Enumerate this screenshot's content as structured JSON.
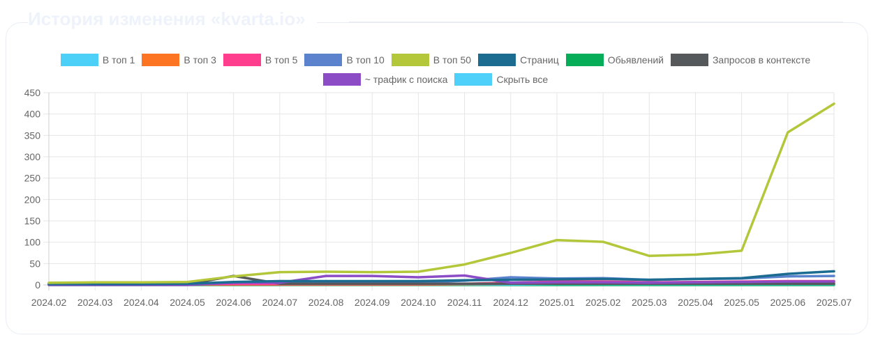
{
  "page": {
    "heading": "История изменения «kvarta.io»"
  },
  "colors": {
    "v_top_1": "#4dd0f7",
    "v_top_3": "#fd7522",
    "v_top_5": "#ff3f8e",
    "v_top_10": "#5b82cd",
    "v_top_50": "#b4c73a",
    "stranits": "#1c6b90",
    "obyavleniy": "#06ad58",
    "zaprosov": "#55595c",
    "trafik": "#8b4cc6",
    "hide_all": "#4fd0fa"
  },
  "chart_data": {
    "type": "line",
    "categories": [
      "2024.02",
      "2024.03",
      "2024.04",
      "2024.05",
      "2024.06",
      "2024.07",
      "2024.08",
      "2024.09",
      "2024.10",
      "2024.11",
      "2024.12",
      "2025.01",
      "2025.02",
      "2025.03",
      "2025.04",
      "2025.05",
      "2025.06",
      "2025.07"
    ],
    "ylim": [
      0,
      450
    ],
    "yticks": [
      0,
      50,
      100,
      150,
      200,
      250,
      300,
      350,
      400,
      450
    ],
    "grid": true,
    "legend_position": "top",
    "legend_rows": [
      [
        0,
        1,
        2,
        3,
        4,
        5,
        6,
        7
      ],
      [
        8,
        9
      ]
    ],
    "series": [
      {
        "name": "В топ 1",
        "color": "#4dd0f7",
        "values": [
          1,
          1,
          1,
          1,
          1,
          1,
          1,
          1,
          1,
          1,
          1,
          2,
          2,
          2,
          2,
          2,
          2,
          2
        ]
      },
      {
        "name": "В топ 3",
        "color": "#fd7522",
        "values": [
          1,
          1,
          1,
          1,
          1,
          1,
          1,
          1,
          1,
          2,
          3,
          4,
          4,
          3,
          4,
          4,
          5,
          5
        ]
      },
      {
        "name": "В топ 5",
        "color": "#ff3f8e",
        "values": [
          2,
          2,
          2,
          2,
          2,
          2,
          2,
          2,
          2,
          3,
          5,
          8,
          8,
          6,
          7,
          8,
          9,
          9
        ]
      },
      {
        "name": "В топ 10",
        "color": "#5b82cd",
        "values": [
          3,
          3,
          3,
          3,
          5,
          6,
          6,
          6,
          6,
          10,
          18,
          15,
          16,
          12,
          14,
          15,
          20,
          21
        ]
      },
      {
        "name": "В топ 50",
        "color": "#b4c73a",
        "values": [
          5,
          6,
          6,
          7,
          20,
          30,
          31,
          30,
          31,
          48,
          75,
          105,
          101,
          68,
          71,
          80,
          357,
          424
        ]
      },
      {
        "name": "Страниц",
        "color": "#1c6b90",
        "values": [
          2,
          2,
          2,
          3,
          7,
          9,
          9,
          9,
          9,
          11,
          12,
          13,
          14,
          12,
          14,
          16,
          26,
          32
        ]
      },
      {
        "name": "Обьявлений",
        "color": "#06ad58",
        "values": [
          0,
          0,
          0,
          0,
          0,
          0,
          0,
          0,
          0,
          0,
          0,
          0,
          0,
          0,
          0,
          0,
          0,
          0
        ]
      },
      {
        "name": "Запросов в контексте",
        "color": "#55595c",
        "values": [
          2,
          2,
          2,
          2,
          21,
          3,
          3,
          3,
          3,
          3,
          3,
          3,
          3,
          3,
          3,
          3,
          3,
          3
        ]
      },
      {
        "name": "~ трафик с поиска",
        "color": "#8b4cc6",
        "values": [
          0,
          0,
          0,
          0,
          5,
          5,
          21,
          21,
          18,
          22,
          5,
          6,
          6,
          5,
          6,
          7,
          8,
          8
        ]
      },
      {
        "name": "Скрыть все",
        "color": "#4fd0fa",
        "values": null
      }
    ]
  }
}
